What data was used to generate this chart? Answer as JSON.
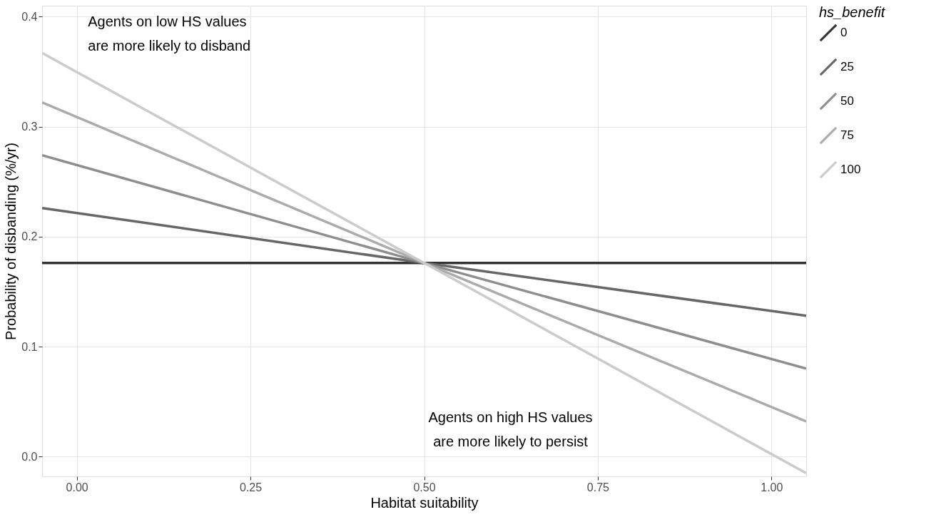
{
  "chart_data": {
    "type": "line",
    "xlabel": "Habitat suitability",
    "ylabel": "Probability of disbanding (%/yr)",
    "legend_title": "hs_benefit",
    "x": [
      -0.05,
      0.5,
      1.05
    ],
    "series": [
      {
        "name": "0",
        "color": "#333333",
        "values": [
          0.176,
          0.176,
          0.176
        ]
      },
      {
        "name": "25",
        "color": "#676767",
        "values": [
          0.226,
          0.176,
          0.128
        ]
      },
      {
        "name": "50",
        "color": "#8e8e8e",
        "values": [
          0.274,
          0.176,
          0.08
        ]
      },
      {
        "name": "75",
        "color": "#ababab",
        "values": [
          0.322,
          0.176,
          0.032
        ]
      },
      {
        "name": "100",
        "color": "#cbcbcb",
        "values": [
          0.367,
          0.176,
          -0.015
        ]
      }
    ],
    "xlim": [
      -0.05,
      1.05
    ],
    "ylim": [
      -0.018,
      0.41
    ],
    "xticks": [
      {
        "value": 0,
        "label": "0.00"
      },
      {
        "value": 0.25,
        "label": "0.25"
      },
      {
        "value": 0.5,
        "label": "0.50"
      },
      {
        "value": 0.75,
        "label": "0.75"
      },
      {
        "value": 1,
        "label": "1.00"
      }
    ],
    "yticks": [
      {
        "value": 0,
        "label": "0.0"
      },
      {
        "value": 0.1,
        "label": "0.1"
      },
      {
        "value": 0.2,
        "label": "0.2"
      },
      {
        "value": 0.3,
        "label": "0.3"
      },
      {
        "value": 0.4,
        "label": "0.4"
      }
    ],
    "annotations": [
      "Agents on low HS values\nare more likely to disband",
      "Agents on high HS values\n are more likely to persist"
    ],
    "grid": true,
    "legend": "right",
    "marker": "none",
    "line_style": "solid"
  }
}
